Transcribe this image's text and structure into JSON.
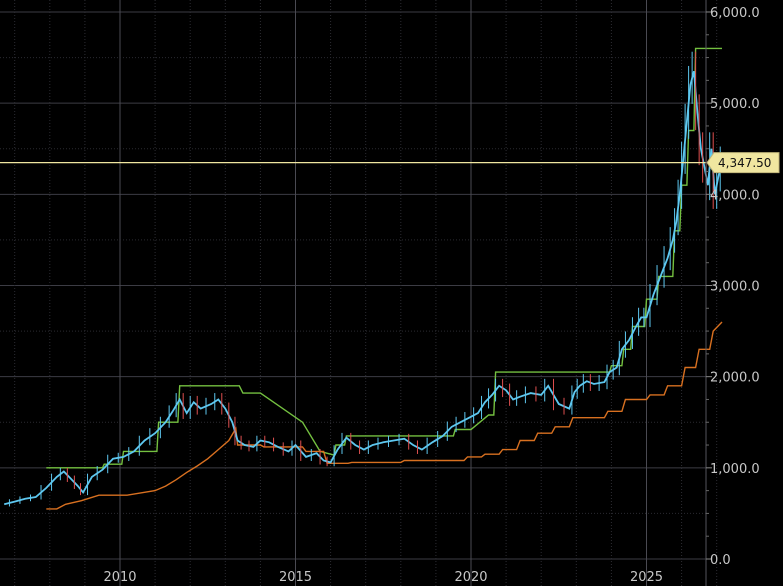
{
  "chart_data": {
    "type": "line",
    "title": "",
    "xlabel": "",
    "ylabel": "",
    "xlim": [
      2006.7,
      2027.6
    ],
    "ylim": [
      0,
      6000
    ],
    "grid": true,
    "x_ticks": [
      2010,
      2015,
      2020,
      2025
    ],
    "x_tick_labels": [
      "2010",
      "2015",
      "2020",
      "2025"
    ],
    "y_ticks": [
      0,
      1000,
      2000,
      3000,
      4000,
      5000,
      6000
    ],
    "y_tick_labels": [
      "0.0",
      "1,000.0",
      "2,000.0",
      "3,000.0",
      "4,000.0",
      "5,000.0",
      "6,000.0"
    ],
    "current_price": 4347.5,
    "current_price_label": "4,347.50",
    "colors": {
      "background": "#000000",
      "grid": "#3c3c44",
      "price": "#5ec8f0",
      "price_down": "#e05050",
      "upper_band": "#74c040",
      "lower_band": "#d87020",
      "price_line": "#f0e6a0",
      "axis_text": "#c8c8c8"
    },
    "series": [
      {
        "role": "price",
        "x": [
          2006.7,
          2007.0,
          2007.3,
          2007.6,
          2007.9,
          2008.2,
          2008.4,
          2008.6,
          2008.8,
          2008.95,
          2009.2,
          2009.5,
          2009.8,
          2010.1,
          2010.4,
          2010.7,
          2011.0,
          2011.3,
          2011.5,
          2011.7,
          2011.9,
          2012.1,
          2012.3,
          2012.6,
          2012.8,
          2013.0,
          2013.2,
          2013.35,
          2013.55,
          2013.8,
          2014.0,
          2014.25,
          2014.5,
          2014.8,
          2015.0,
          2015.3,
          2015.6,
          2015.8,
          2016.0,
          2016.2,
          2016.45,
          2016.7,
          2016.95,
          2017.2,
          2017.5,
          2017.8,
          2018.1,
          2018.35,
          2018.6,
          2018.9,
          2019.2,
          2019.45,
          2019.7,
          2019.95,
          2020.2,
          2020.4,
          2020.6,
          2020.8,
          2021.0,
          2021.2,
          2021.4,
          2021.7,
          2022.0,
          2022.2,
          2022.5,
          2022.8,
          2022.95,
          2023.1,
          2023.3,
          2023.5,
          2023.8,
          2023.95,
          2024.15,
          2024.3,
          2024.5,
          2024.7,
          2024.85,
          2025.0,
          2025.2,
          2025.4,
          2025.6,
          2025.75,
          2025.85,
          2025.95,
          2026.05,
          2026.15,
          2026.25,
          2026.35,
          2026.45,
          2026.55,
          2026.65,
          2026.75,
          2026.85,
          2026.95,
          2027.05,
          2027.15
        ],
        "values": [
          600,
          630,
          660,
          680,
          780,
          900,
          960,
          880,
          800,
          730,
          900,
          980,
          1100,
          1120,
          1180,
          1300,
          1380,
          1500,
          1620,
          1750,
          1600,
          1720,
          1650,
          1700,
          1750,
          1650,
          1500,
          1300,
          1250,
          1230,
          1300,
          1280,
          1230,
          1180,
          1250,
          1120,
          1160,
          1080,
          1060,
          1200,
          1330,
          1250,
          1200,
          1250,
          1280,
          1300,
          1320,
          1250,
          1200,
          1280,
          1350,
          1450,
          1500,
          1550,
          1600,
          1720,
          1800,
          1900,
          1850,
          1750,
          1780,
          1820,
          1800,
          1900,
          1700,
          1650,
          1830,
          1900,
          1950,
          1920,
          1940,
          2050,
          2100,
          2300,
          2400,
          2550,
          2650,
          2650,
          2900,
          3100,
          3300,
          3500,
          3700,
          4000,
          4400,
          4800,
          5200,
          5350,
          4900,
          4500,
          4300,
          4100,
          4500,
          4000,
          4200,
          4350
        ]
      },
      {
        "role": "upper-band",
        "x": [
          2007.9,
          2009.5,
          2009.55,
          2010.05,
          2010.1,
          2011.05,
          2011.1,
          2011.65,
          2011.7,
          2013.4,
          2013.5,
          2014.0,
          2015.2,
          2015.7,
          2016.1,
          2016.15,
          2016.4,
          2016.45,
          2019.5,
          2019.55,
          2020.0,
          2020.5,
          2020.65,
          2020.7,
          2023.95,
          2024.0,
          2024.3,
          2024.35,
          2024.55,
          2024.6,
          2024.95,
          2025.0,
          2025.3,
          2025.35,
          2025.75,
          2025.8,
          2025.95,
          2026.0,
          2026.15,
          2026.2,
          2026.35,
          2026.4,
          2027.15
        ],
        "values": [
          1000,
          1000,
          1040,
          1040,
          1180,
          1180,
          1500,
          1500,
          1900,
          1900,
          1820,
          1820,
          1500,
          1180,
          1140,
          1250,
          1250,
          1350,
          1350,
          1420,
          1420,
          1580,
          1580,
          2050,
          2050,
          2120,
          2120,
          2300,
          2300,
          2550,
          2550,
          2850,
          2850,
          3100,
          3100,
          3600,
          3600,
          4100,
          4100,
          4700,
          4700,
          5600,
          5600
        ]
      },
      {
        "role": "lower-band",
        "x": [
          2007.9,
          2008.2,
          2008.45,
          2008.9,
          2009.4,
          2009.8,
          2010.2,
          2011.0,
          2011.3,
          2011.6,
          2011.9,
          2012.2,
          2012.5,
          2012.8,
          2013.1,
          2013.3,
          2013.35,
          2014.0,
          2014.1,
          2014.3,
          2015.2,
          2015.3,
          2015.8,
          2015.9,
          2016.5,
          2016.6,
          2018.0,
          2018.1,
          2019.8,
          2019.9,
          2020.3,
          2020.4,
          2020.8,
          2020.9,
          2021.3,
          2021.4,
          2021.8,
          2021.9,
          2022.3,
          2022.4,
          2022.8,
          2022.9,
          2023.8,
          2023.9,
          2024.3,
          2024.4,
          2025.0,
          2025.1,
          2025.5,
          2025.6,
          2026.0,
          2026.1,
          2026.4,
          2026.5,
          2026.8,
          2026.9,
          2027.15
        ],
        "values": [
          550,
          550,
          600,
          640,
          700,
          700,
          700,
          750,
          800,
          870,
          950,
          1020,
          1100,
          1200,
          1300,
          1430,
          1250,
          1250,
          1230,
          1230,
          1230,
          1180,
          1180,
          1050,
          1050,
          1060,
          1060,
          1080,
          1080,
          1120,
          1120,
          1150,
          1150,
          1200,
          1200,
          1300,
          1300,
          1380,
          1380,
          1450,
          1450,
          1550,
          1550,
          1620,
          1620,
          1750,
          1750,
          1800,
          1800,
          1900,
          1900,
          2100,
          2100,
          2300,
          2300,
          2500,
          2600
        ]
      }
    ]
  }
}
